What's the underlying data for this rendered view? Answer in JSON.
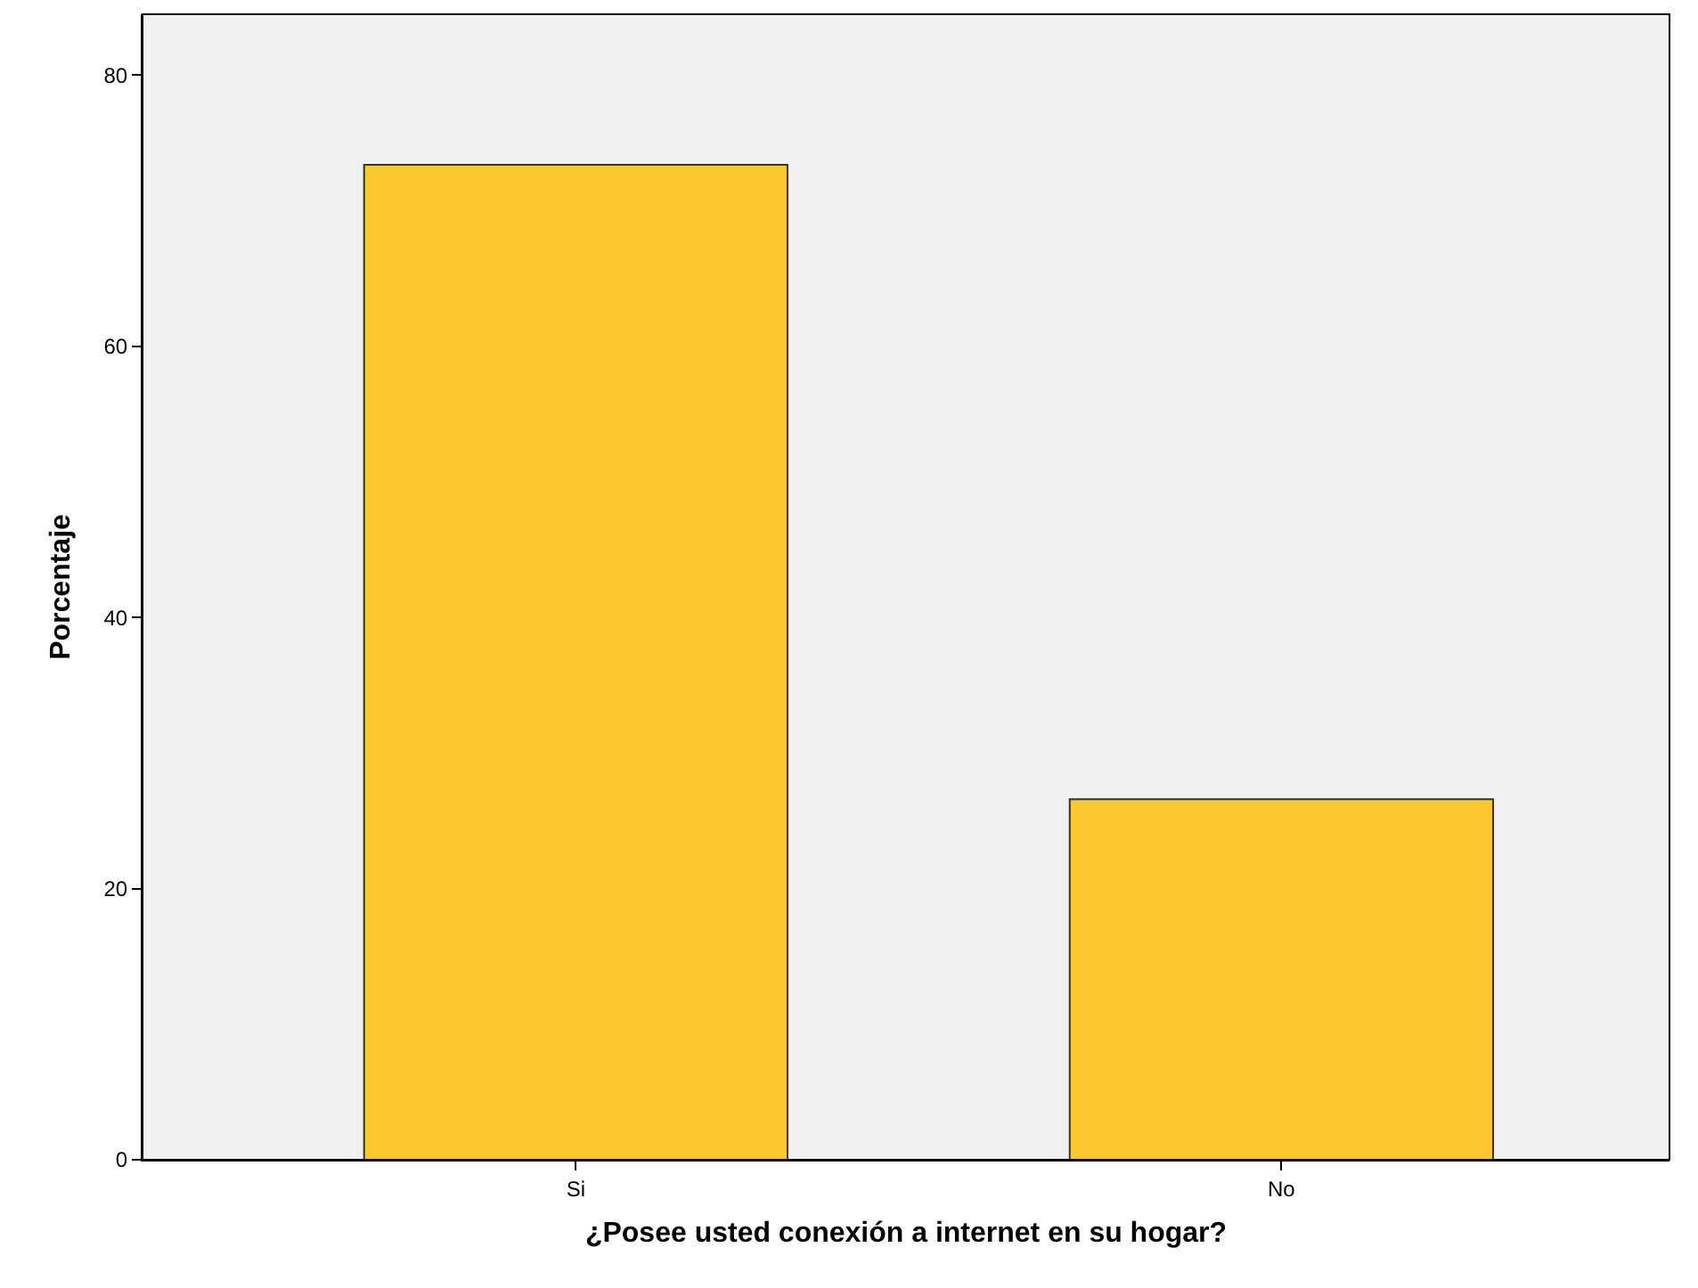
{
  "chart_data": {
    "type": "bar",
    "xlabel": "¿Posee usted conexión a internet en su hogar?",
    "ylabel": "Porcentaje",
    "categories": [
      "Si",
      "No"
    ],
    "values": [
      73.4,
      26.6
    ],
    "color": "#fdc92f",
    "ylim": [
      0,
      84.5
    ],
    "yticks": [
      0,
      20,
      40,
      60,
      80
    ],
    "grid": false
  }
}
